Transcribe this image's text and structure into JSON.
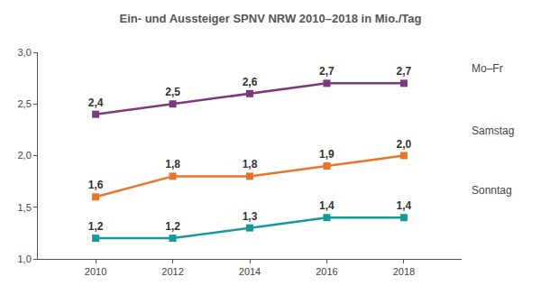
{
  "chart_data": {
    "type": "line",
    "title": "Ein- und Aussteiger SPNV NRW 2010–2018 in Mio./Tag",
    "categories": [
      "2010",
      "2012",
      "2014",
      "2016",
      "2018"
    ],
    "series": [
      {
        "name": "Mo–Fr",
        "color": "#7b3a7d",
        "values": [
          2.4,
          2.5,
          2.6,
          2.7,
          2.7
        ],
        "value_labels": [
          "2,4",
          "2,5",
          "2,6",
          "2,7",
          "2,7"
        ]
      },
      {
        "name": "Samstag",
        "color": "#e8732b",
        "values": [
          1.6,
          1.8,
          1.8,
          1.9,
          2.0
        ],
        "value_labels": [
          "1,6",
          "1,8",
          "1,8",
          "1,9",
          "2,0"
        ]
      },
      {
        "name": "Sonntag",
        "color": "#17999a",
        "values": [
          1.2,
          1.2,
          1.3,
          1.4,
          1.4
        ],
        "value_labels": [
          "1,2",
          "1,2",
          "1,3",
          "1,4",
          "1,4"
        ]
      }
    ],
    "ylim": [
      1.0,
      3.0
    ],
    "yticks": [
      {
        "value": 1.0,
        "label": "1,0"
      },
      {
        "value": 1.5,
        "label": "1,5"
      },
      {
        "value": 2.0,
        "label": "2,0"
      },
      {
        "value": 2.5,
        "label": "2,5"
      },
      {
        "value": 3.0,
        "label": "3,0"
      }
    ],
    "grid": false,
    "data_labels": true,
    "marker": "square"
  }
}
